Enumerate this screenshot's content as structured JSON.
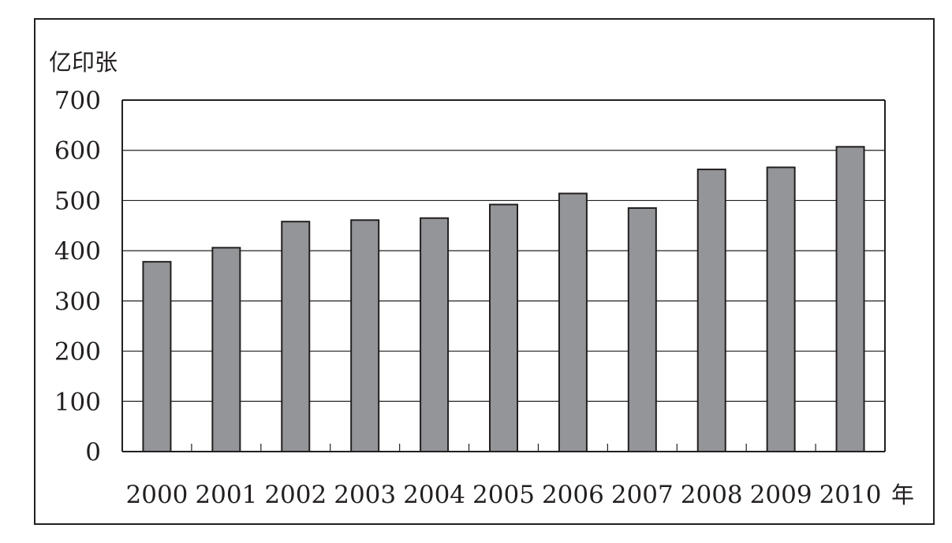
{
  "chart_data": {
    "type": "bar",
    "categories": [
      "2000",
      "2001",
      "2002",
      "2003",
      "2004",
      "2005",
      "2006",
      "2007",
      "2008",
      "2009",
      "2010"
    ],
    "values": [
      378,
      406,
      458,
      461,
      465,
      492,
      514,
      485,
      562,
      566,
      607
    ],
    "ylim": [
      0,
      700
    ],
    "yticks": [
      "0",
      "100",
      "200",
      "300",
      "400",
      "500",
      "600",
      "700"
    ],
    "ylabel": "亿印张",
    "xunit": "年",
    "title": "",
    "grid": true,
    "legend": "none",
    "colors": {
      "bar": "#939598",
      "stroke": "#231f20",
      "background": "#ffffff"
    }
  }
}
